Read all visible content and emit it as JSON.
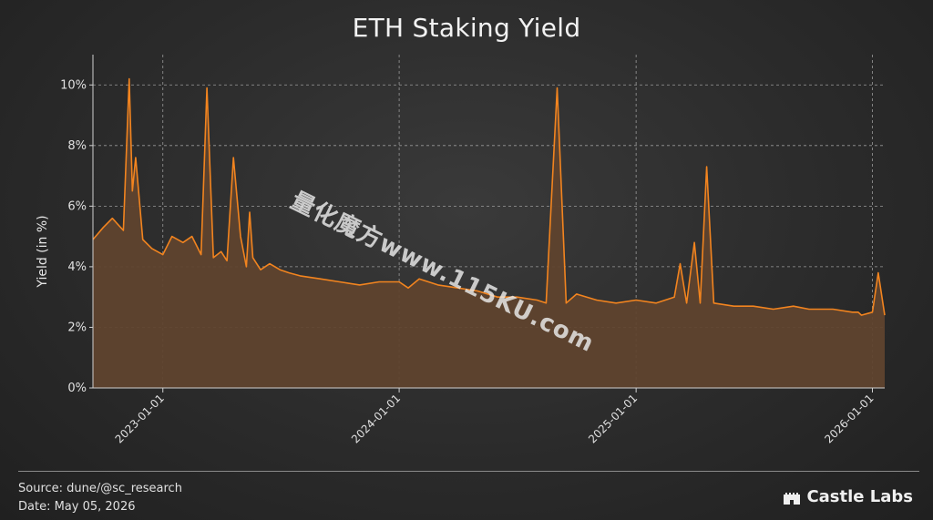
{
  "title": "ETH Staking Yield",
  "footer": {
    "source": "Source: dune/@sc_research",
    "date": "Date: May 05, 2026",
    "brand": "Castle Labs"
  },
  "watermark": "量化魔方www.115KU.com",
  "colors": {
    "line": "#f2841f",
    "fill": "#5f432e",
    "grid": "#9a9a9a",
    "background": "#2e2e2e"
  },
  "chart_data": {
    "type": "area",
    "title": "ETH Staking Yield",
    "xlabel": "",
    "ylabel": "Yield (in %)",
    "xlim": [
      "2022-09-15",
      "2026-01-20"
    ],
    "ylim": [
      0,
      11
    ],
    "yticks": [
      0,
      2,
      4,
      6,
      8,
      10
    ],
    "ytick_labels": [
      "0%",
      "2%",
      "4%",
      "6%",
      "8%",
      "10%"
    ],
    "xticks": [
      "2023-01-01",
      "2024-01-01",
      "2025-01-01",
      "2026-01-01"
    ],
    "xtick_labels": [
      "2023-01-01",
      "2024-01-01",
      "2025-01-01",
      "2026-01-01"
    ],
    "grid": true,
    "series": [
      {
        "x": [
          "2022-09-15",
          "2022-10-01",
          "2022-10-15",
          "2022-11-01",
          "2022-11-10",
          "2022-11-15",
          "2022-11-20",
          "2022-12-01",
          "2022-12-15",
          "2023-01-01",
          "2023-01-15",
          "2023-02-01",
          "2023-02-15",
          "2023-03-01",
          "2023-03-10",
          "2023-03-20",
          "2023-04-01",
          "2023-04-10",
          "2023-04-20",
          "2023-05-01",
          "2023-05-10",
          "2023-05-15",
          "2023-05-20",
          "2023-06-01",
          "2023-06-15",
          "2023-07-01",
          "2023-07-15",
          "2023-08-01",
          "2023-09-01",
          "2023-10-01",
          "2023-11-01",
          "2023-12-01",
          "2024-01-01",
          "2024-01-15",
          "2024-02-01",
          "2024-03-01",
          "2024-04-01",
          "2024-05-01",
          "2024-06-01",
          "2024-07-01",
          "2024-08-01",
          "2024-08-15",
          "2024-09-01",
          "2024-09-15",
          "2024-10-01",
          "2024-11-01",
          "2024-12-01",
          "2025-01-01",
          "2025-02-01",
          "2025-03-01",
          "2025-03-10",
          "2025-03-20",
          "2025-04-01",
          "2025-04-10",
          "2025-04-20",
          "2025-05-01",
          "2025-06-01",
          "2025-07-01",
          "2025-08-01",
          "2025-09-01",
          "2025-09-25",
          "2025-10-01",
          "2025-11-01",
          "2025-12-01",
          "2025-12-10",
          "2025-12-15",
          "2026-01-01",
          "2026-01-10",
          "2026-01-20"
        ],
        "values": [
          4.9,
          5.3,
          5.6,
          5.2,
          10.2,
          6.5,
          7.6,
          4.9,
          4.6,
          4.4,
          5.0,
          4.8,
          5.0,
          4.4,
          9.9,
          4.3,
          4.5,
          4.2,
          7.6,
          5.0,
          4.0,
          5.8,
          4.3,
          3.9,
          4.1,
          3.9,
          3.8,
          3.7,
          3.6,
          3.5,
          3.4,
          3.5,
          3.5,
          3.3,
          3.6,
          3.4,
          3.3,
          3.2,
          3.0,
          3.0,
          2.9,
          2.8,
          9.9,
          2.8,
          3.1,
          2.9,
          2.8,
          2.9,
          2.8,
          3.0,
          4.1,
          2.8,
          4.8,
          2.8,
          7.3,
          2.8,
          2.7,
          2.7,
          2.6,
          2.7,
          2.6,
          2.6,
          2.6,
          2.5,
          2.5,
          2.4,
          2.5,
          3.8,
          2.4
        ]
      }
    ]
  }
}
